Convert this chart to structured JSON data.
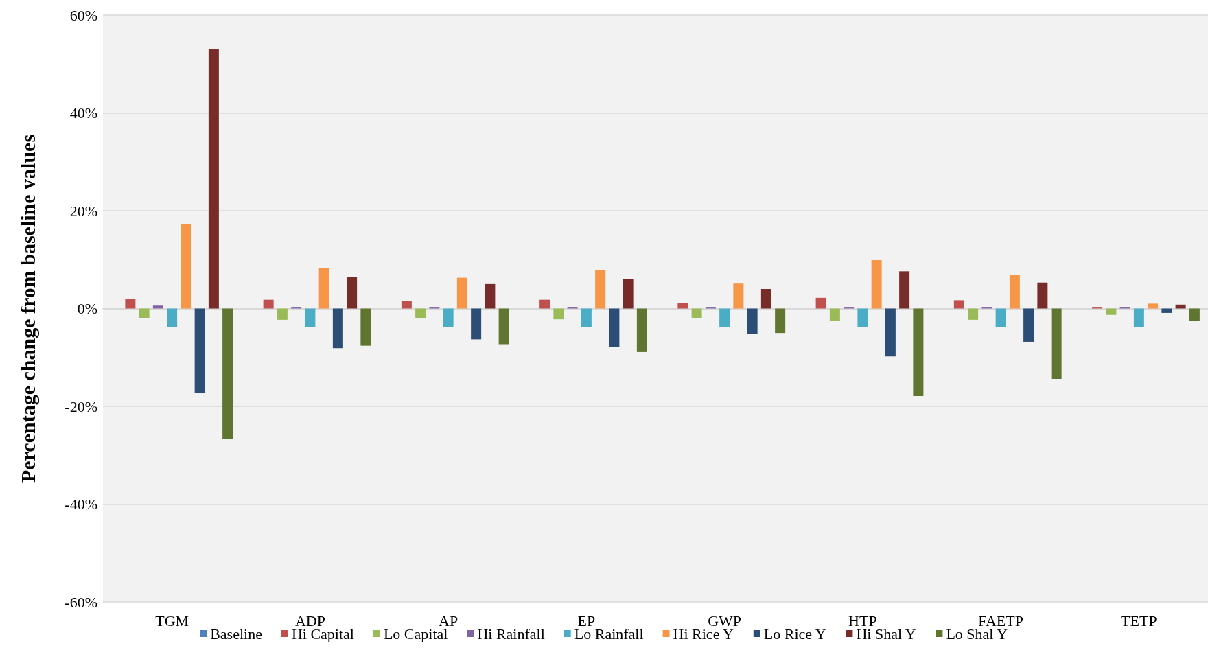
{
  "chart_data": {
    "type": "bar",
    "ylabel": "Percentage change from baseline values",
    "categories": [
      "TGM",
      "ADP",
      "AP",
      "EP",
      "GWP",
      "HTP",
      "FAETP",
      "TETP"
    ],
    "series": [
      {
        "name": "Baseline",
        "color": "#4f81bd",
        "values": [
          0,
          0,
          0,
          0,
          0,
          0,
          0,
          0
        ]
      },
      {
        "name": "Hi Capital",
        "color": "#c0504d",
        "values": [
          2.0,
          1.8,
          1.5,
          1.8,
          1.1,
          2.2,
          1.7,
          0.2
        ]
      },
      {
        "name": "Lo Capital",
        "color": "#9bbb59",
        "values": [
          -1.9,
          -2.3,
          -2.0,
          -2.2,
          -1.9,
          -2.6,
          -2.3,
          -1.3
        ]
      },
      {
        "name": "Hi Rainfall",
        "color": "#8064a2",
        "values": [
          0.6,
          0.2,
          0.2,
          0.2,
          0.2,
          0.2,
          0.2,
          0.2
        ]
      },
      {
        "name": "Lo Rainfall",
        "color": "#4bacc6",
        "values": [
          -3.8,
          -3.8,
          -3.8,
          -3.8,
          -3.8,
          -3.8,
          -3.8,
          -3.8
        ]
      },
      {
        "name": "Hi Rice Y",
        "color": "#f79646",
        "values": [
          17.3,
          8.3,
          6.3,
          7.8,
          5.1,
          9.9,
          6.9,
          1.0
        ]
      },
      {
        "name": "Lo Rice Y",
        "color": "#2c4d75",
        "values": [
          -17.3,
          -8.1,
          -6.3,
          -7.8,
          -5.2,
          -9.8,
          -6.8,
          -0.9
        ]
      },
      {
        "name": "Hi Shal Y",
        "color": "#772c2a",
        "values": [
          53,
          6.4,
          5.0,
          6.0,
          4.0,
          7.6,
          5.3,
          0.8
        ]
      },
      {
        "name": "Lo Shal Y",
        "color": "#5f7530",
        "values": [
          -26.6,
          -7.6,
          -7.3,
          -8.9,
          -5.0,
          -17.9,
          -14.4,
          -2.6
        ]
      }
    ],
    "ylim": [
      -60,
      60
    ],
    "yticks": [
      {
        "value": -60,
        "label": "-60%"
      },
      {
        "value": -40,
        "label": "-40%"
      },
      {
        "value": -20,
        "label": "-20%"
      },
      {
        "value": 0,
        "label": "0%"
      },
      {
        "value": 20,
        "label": "20%"
      },
      {
        "value": 40,
        "label": "40%"
      },
      {
        "value": 60,
        "label": "60%"
      }
    ],
    "grid": "y",
    "legend": "bottom"
  }
}
